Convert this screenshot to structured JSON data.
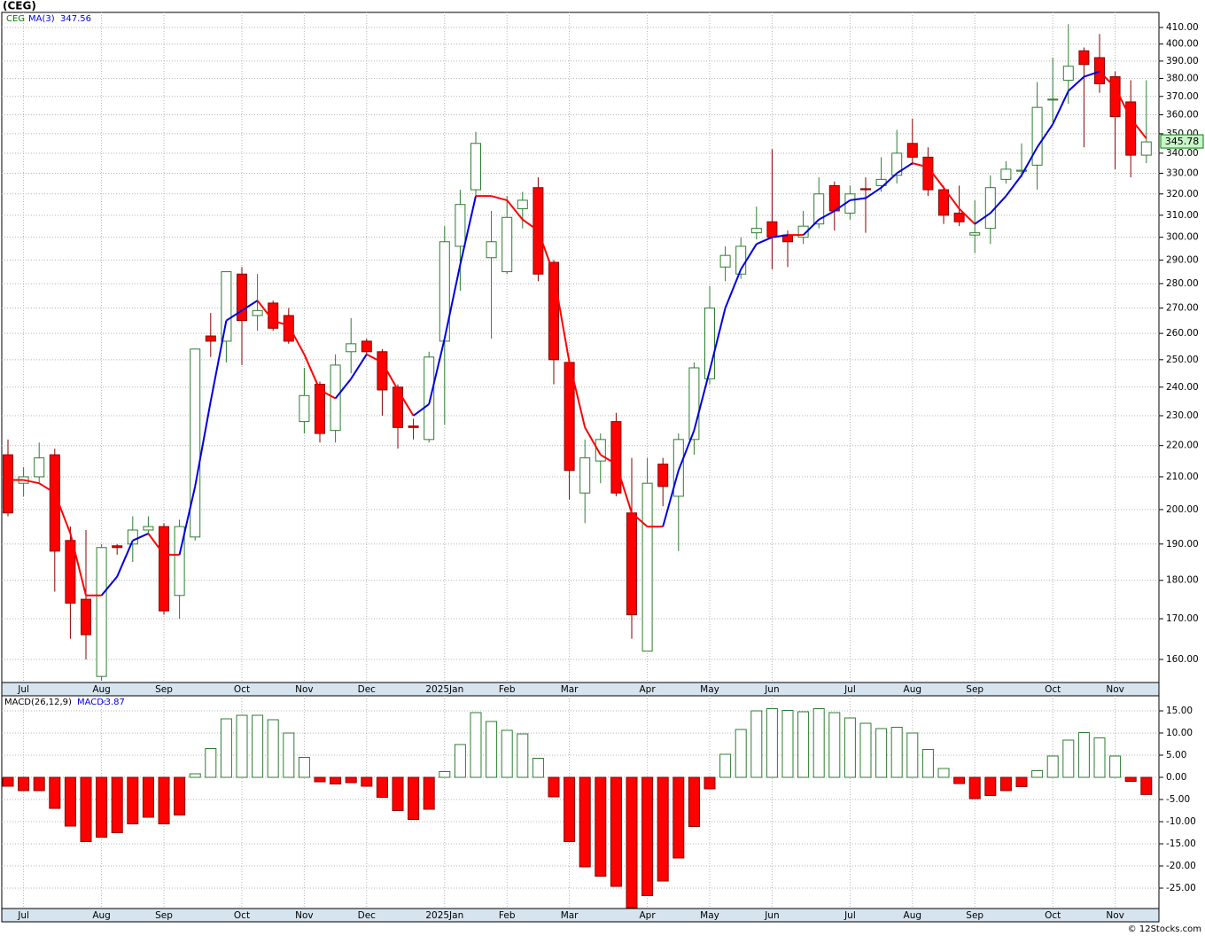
{
  "chart_data": [
    {
      "type": "candlestick",
      "title": "(CEG)",
      "symbol": "CEG",
      "categories": [
        null,
        "Jul",
        null,
        null,
        null,
        null,
        "Aug",
        null,
        null,
        null,
        "Sep",
        null,
        null,
        null,
        null,
        "Oct",
        null,
        null,
        null,
        "Nov",
        null,
        null,
        null,
        "Dec",
        null,
        null,
        null,
        null,
        "2025Jan",
        null,
        null,
        null,
        "Feb",
        null,
        null,
        null,
        "Mar",
        null,
        null,
        null,
        null,
        "Apr",
        null,
        null,
        null,
        "May",
        null,
        null,
        null,
        "Jun",
        null,
        null,
        null,
        null,
        "Jul",
        null,
        null,
        null,
        "Aug",
        null,
        null,
        null,
        "Sep",
        null,
        null,
        null,
        null,
        "Oct",
        null,
        null,
        null,
        "Nov",
        null,
        null
      ],
      "open": [
        217,
        208,
        210,
        217,
        191,
        175,
        156,
        189.5,
        190,
        194,
        195,
        176,
        192,
        259,
        257,
        284,
        267,
        272,
        267,
        228,
        241,
        225,
        253,
        257,
        253,
        240,
        226.5,
        222,
        257,
        296,
        322,
        291,
        285,
        313,
        323,
        289,
        249,
        205,
        215,
        228,
        199,
        162,
        214,
        204,
        222,
        243,
        287,
        284,
        302,
        307,
        301,
        300,
        306,
        324,
        311,
        322.5,
        324,
        329,
        345,
        338,
        322,
        311,
        301,
        304,
        327,
        331,
        334,
        368,
        379,
        396,
        392,
        381,
        367,
        339
      ],
      "high": [
        222,
        213,
        221,
        219,
        195,
        194,
        190,
        190,
        198,
        198,
        196,
        197,
        254,
        268,
        285,
        287,
        284,
        273,
        270,
        247,
        242,
        252,
        266,
        258,
        254,
        241,
        229,
        253,
        305,
        322,
        351,
        312,
        319,
        321,
        328,
        290,
        250,
        222,
        224,
        231,
        216,
        216,
        216,
        224,
        249,
        279,
        296,
        300,
        314,
        342,
        303,
        312,
        328,
        326,
        324,
        328,
        338,
        352,
        358,
        343,
        324,
        324,
        317,
        329,
        336,
        345,
        378,
        392,
        412,
        398,
        406,
        384,
        379,
        379
      ],
      "low": [
        198,
        204,
        208,
        177,
        165,
        160,
        155,
        187,
        185,
        193,
        171,
        170,
        191,
        251,
        249,
        248,
        261,
        261,
        256,
        224,
        221,
        221,
        245,
        252,
        230,
        219,
        222,
        221,
        227,
        277,
        318,
        258,
        284,
        304,
        281,
        241,
        203,
        196,
        208,
        204,
        165,
        162,
        201,
        188,
        217,
        241,
        281,
        282,
        299,
        286,
        287,
        297,
        304,
        303,
        308,
        302,
        321,
        325,
        334,
        319,
        306,
        305,
        293,
        297,
        325,
        328,
        322,
        356,
        366,
        343,
        372,
        332,
        328,
        335
      ],
      "close": [
        199,
        210,
        216,
        188,
        174,
        166,
        189,
        189,
        194,
        195,
        172,
        195,
        254,
        257,
        285,
        265,
        269,
        262,
        257,
        237,
        224,
        248,
        256,
        253,
        239,
        226,
        226,
        251,
        298,
        315,
        345,
        298,
        309,
        317,
        284,
        250,
        212,
        216,
        222,
        205,
        171,
        208,
        207,
        222,
        247,
        270,
        292,
        296,
        304,
        300,
        298,
        305,
        320,
        312,
        320,
        322,
        327,
        340,
        338,
        322,
        310,
        307,
        302,
        323,
        332,
        331.5,
        364,
        368.5,
        387,
        388,
        377,
        359,
        339,
        345.78
      ],
      "up_color": "#2e7d32",
      "down_color": "#ff0000",
      "ma": {
        "name": "MA(3)",
        "up_color": "#0000dd",
        "down_color": "#ff0000",
        "values": [
          209,
          209,
          208,
          205,
          193,
          176,
          176,
          181,
          191,
          193,
          187,
          187,
          207,
          235,
          265,
          269,
          273,
          265,
          263,
          252,
          239,
          236,
          243,
          252,
          249,
          239,
          230,
          234,
          258,
          288,
          319,
          319,
          317,
          308,
          303,
          284,
          249,
          226,
          217,
          214,
          199,
          195,
          195,
          212,
          225,
          246,
          270,
          286,
          297,
          300,
          301,
          301,
          308,
          312,
          317,
          318,
          323,
          330,
          335,
          333,
          323,
          313,
          306,
          311,
          319,
          329,
          343,
          355,
          373,
          381,
          384,
          375,
          358,
          347.56
        ]
      },
      "log": true,
      "grid": true,
      "ylim": [
        154.6,
        419.3
      ],
      "yticks": [
        {
          "value": 160,
          "label": "160.00"
        },
        {
          "value": 170,
          "label": "170.00"
        },
        {
          "value": 180,
          "label": "180.00"
        },
        {
          "value": 190,
          "label": "190.00"
        },
        {
          "value": 200,
          "label": "200.00"
        },
        {
          "value": 210,
          "label": "210.00"
        },
        {
          "value": 220,
          "label": "220.00"
        },
        {
          "value": 230,
          "label": "230.00"
        },
        {
          "value": 240,
          "label": "240.00"
        },
        {
          "value": 250,
          "label": "250.00"
        },
        {
          "value": 260,
          "label": "260.00"
        },
        {
          "value": 270,
          "label": "270.00"
        },
        {
          "value": 280,
          "label": "280.00"
        },
        {
          "value": 290,
          "label": "290.00"
        },
        {
          "value": 300,
          "label": "300.00"
        },
        {
          "value": 310,
          "label": "310.00"
        },
        {
          "value": 320,
          "label": "320.00"
        },
        {
          "value": 330,
          "label": "330.00"
        },
        {
          "value": 340,
          "label": "340.00"
        },
        {
          "value": 350,
          "label": "350.00"
        },
        {
          "value": 360,
          "label": "360.00"
        },
        {
          "value": 370,
          "label": "370.00"
        },
        {
          "value": 380,
          "label": "380.00"
        },
        {
          "value": 390,
          "label": "390.00"
        },
        {
          "value": 400,
          "label": "400.00"
        },
        {
          "value": 410,
          "label": "410.00"
        }
      ]
    },
    {
      "type": "bar",
      "title": "MACD(26,12,9)",
      "value_name": "MACD:",
      "values": [
        -2,
        -3,
        -3,
        -7,
        -11,
        -14.5,
        -13.5,
        -12.5,
        -10.5,
        -9,
        -10.5,
        -8.5,
        0.8,
        6.5,
        13.2,
        14,
        14,
        13,
        10,
        4.5,
        -1,
        -1.5,
        -1.2,
        -2,
        -4.5,
        -7.5,
        -9.5,
        -7.2,
        1.3,
        7.4,
        14.6,
        12.6,
        10.6,
        9.8,
        4.3,
        -4.4,
        -14.5,
        -20.2,
        -22.3,
        -24.6,
        -29.4,
        -26.7,
        -23.4,
        -18.2,
        -11.1,
        -2.6,
        5.2,
        10.8,
        15,
        15.5,
        15.1,
        14.8,
        15.5,
        14.6,
        13.4,
        12.2,
        11,
        11.3,
        10,
        6.3,
        2,
        -1.4,
        -4.8,
        -4.1,
        -3,
        -2.1,
        1.5,
        4.8,
        8.4,
        10.1,
        8.9,
        4.8,
        -0.9,
        -3.87
      ],
      "pos_color": "#2e7d32",
      "neg_color": "#ff0000",
      "grid": true,
      "ylim": [
        -29.6,
        18.4
      ],
      "yticks": [
        {
          "value": 15,
          "label": "15.00"
        },
        {
          "value": 10,
          "label": "10.00"
        },
        {
          "value": 5,
          "label": "5.00"
        },
        {
          "value": 0,
          "label": "0.00"
        },
        {
          "value": -5,
          "label": "-5.00"
        },
        {
          "value": -10,
          "label": "-10.00"
        },
        {
          "value": -15,
          "label": "-15.00"
        },
        {
          "value": -20,
          "label": "-20.00"
        },
        {
          "value": -25,
          "label": "-25.00"
        }
      ]
    }
  ],
  "footer": "© 12Stocks.com"
}
